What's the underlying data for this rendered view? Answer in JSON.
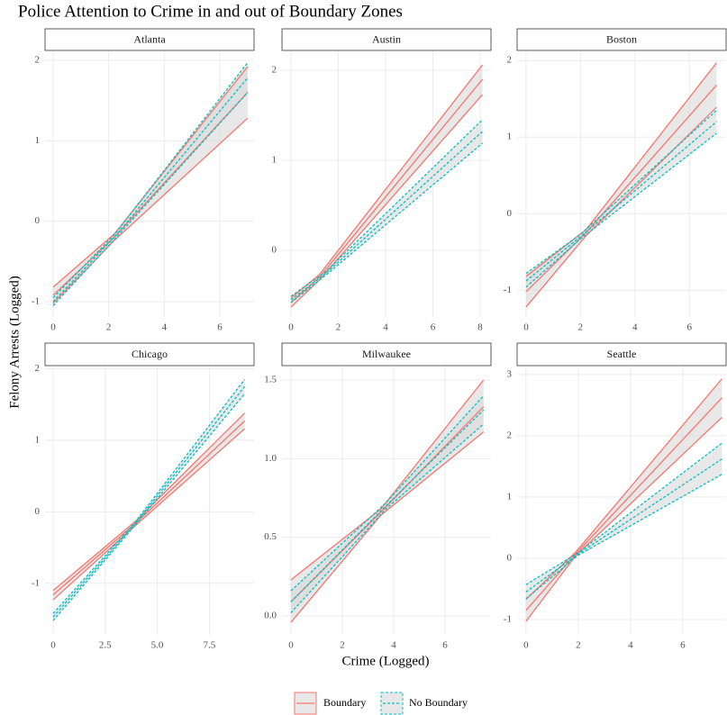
{
  "title": "Police Attention to Crime in and out of Boundary Zones",
  "x_label": "Crime (Logged)",
  "y_label": "Felony Arrests (Logged)",
  "legend": "bottom",
  "grid": true,
  "band_color": "#d9d9d9",
  "chart_data": [
    {
      "type": "line",
      "title": "Atlanta",
      "xlim": [
        -0.29,
        7.23
      ],
      "ylim": [
        -1.19,
        2.11
      ],
      "xticks": [
        0,
        2,
        4,
        6
      ],
      "yticks": [
        -1,
        0,
        1,
        2
      ],
      "series": [
        {
          "name": "Boundary",
          "color": "#f8766d",
          "linestyle": "solid",
          "x": [
            0,
            2.2,
            7
          ],
          "values": [
            -0.92,
            -0.2,
            1.6
          ],
          "lower": [
            -1.02,
            -0.24,
            1.28
          ],
          "upper": [
            -0.82,
            -0.16,
            1.92
          ]
        },
        {
          "name": "No Boundary",
          "color": "#00bfc4",
          "linestyle": "dashed",
          "x": [
            0,
            2.2,
            7
          ],
          "values": [
            -1.0,
            -0.2,
            1.78
          ],
          "lower": [
            -1.05,
            -0.23,
            1.6
          ],
          "upper": [
            -0.95,
            -0.17,
            1.97
          ]
        }
      ]
    },
    {
      "type": "line",
      "title": "Austin",
      "xlim": [
        -0.38,
        8.46
      ],
      "ylim": [
        -0.74,
        2.21
      ],
      "xticks": [
        0,
        2,
        4,
        6,
        8
      ],
      "yticks": [
        0,
        1,
        2
      ],
      "series": [
        {
          "name": "Boundary",
          "color": "#f8766d",
          "linestyle": "solid",
          "x": [
            0,
            1.2,
            8.1
          ],
          "values": [
            -0.58,
            -0.3,
            1.9
          ],
          "lower": [
            -0.63,
            -0.33,
            1.73
          ],
          "upper": [
            -0.53,
            -0.27,
            2.06
          ]
        },
        {
          "name": "No Boundary",
          "color": "#00bfc4",
          "linestyle": "dashed",
          "x": [
            0,
            1.5,
            8.1
          ],
          "values": [
            -0.55,
            -0.25,
            1.32
          ],
          "lower": [
            -0.58,
            -0.27,
            1.19
          ],
          "upper": [
            -0.51,
            -0.23,
            1.45
          ]
        }
      ]
    },
    {
      "type": "line",
      "title": "Boston",
      "xlim": [
        -0.33,
        7.35
      ],
      "ylim": [
        -1.35,
        2.12
      ],
      "xticks": [
        0,
        2,
        4,
        6
      ],
      "yticks": [
        -1,
        0,
        1,
        2
      ],
      "series": [
        {
          "name": "Boundary",
          "color": "#f8766d",
          "linestyle": "solid",
          "x": [
            0,
            2.2,
            7
          ],
          "values": [
            -1.02,
            -0.25,
            1.68
          ],
          "lower": [
            -1.22,
            -0.29,
            1.39
          ],
          "upper": [
            -0.82,
            -0.21,
            1.97
          ]
        },
        {
          "name": "No Boundary",
          "color": "#00bfc4",
          "linestyle": "dashed",
          "x": [
            0,
            2,
            7
          ],
          "values": [
            -0.88,
            -0.3,
            1.2
          ],
          "lower": [
            -0.96,
            -0.33,
            1.05
          ],
          "upper": [
            -0.78,
            -0.27,
            1.35
          ]
        }
      ]
    },
    {
      "type": "line",
      "title": "Chicago",
      "xlim": [
        -0.39,
        9.65
      ],
      "ylim": [
        -1.72,
        2.03
      ],
      "xticks": [
        0,
        2.5,
        {
          "value": 5,
          "label": "5.0"
        },
        7.5
      ],
      "yticks": [
        -1,
        0,
        1,
        2
      ],
      "series": [
        {
          "name": "Boundary",
          "color": "#f8766d",
          "linestyle": "solid",
          "x": [
            0,
            4,
            9.2
          ],
          "values": [
            -1.16,
            -0.15,
            1.27
          ],
          "lower": [
            -1.23,
            -0.18,
            1.16
          ],
          "upper": [
            -1.1,
            -0.12,
            1.38
          ]
        },
        {
          "name": "No Boundary",
          "color": "#00bfc4",
          "linestyle": "dashed",
          "x": [
            0,
            3.9,
            9.2
          ],
          "values": [
            -1.47,
            -0.18,
            1.75
          ],
          "lower": [
            -1.52,
            -0.2,
            1.65
          ],
          "upper": [
            -1.42,
            -0.16,
            1.85
          ]
        }
      ]
    },
    {
      "type": "line",
      "title": "Milwaukee",
      "xlim": [
        -0.35,
        7.79
      ],
      "ylim": [
        -0.12,
        1.586
      ],
      "xticks": [
        0,
        2,
        4,
        6
      ],
      "yticks": [
        {
          "value": 0,
          "label": "0.0"
        },
        0.5,
        {
          "value": 1,
          "label": "1.0"
        },
        1.5
      ],
      "series": [
        {
          "name": "Boundary",
          "color": "#f8766d",
          "linestyle": "solid",
          "x": [
            0,
            3.5,
            7.5
          ],
          "values": [
            0.09,
            0.66,
            1.33
          ],
          "lower": [
            -0.04,
            0.64,
            1.17
          ],
          "upper": [
            0.23,
            0.68,
            1.5
          ]
        },
        {
          "name": "No Boundary",
          "color": "#00bfc4",
          "linestyle": "dashed",
          "x": [
            0,
            3.7,
            7.5
          ],
          "values": [
            0.09,
            0.7,
            1.31
          ],
          "lower": [
            0.02,
            0.68,
            1.22
          ],
          "upper": [
            0.16,
            0.72,
            1.4
          ]
        }
      ]
    },
    {
      "type": "line",
      "title": "Seattle",
      "xlim": [
        -0.34,
        7.66
      ],
      "ylim": [
        -1.25,
        3.13
      ],
      "xticks": [
        0,
        2,
        4,
        6
      ],
      "yticks": [
        -1,
        0,
        1,
        2,
        3
      ],
      "series": [
        {
          "name": "Boundary",
          "color": "#f8766d",
          "linestyle": "solid",
          "x": [
            0,
            1.9,
            7.5
          ],
          "values": [
            -0.85,
            0.07,
            2.62
          ],
          "lower": [
            -1.03,
            0.04,
            2.3
          ],
          "upper": [
            -0.67,
            0.1,
            2.93
          ]
        },
        {
          "name": "No Boundary",
          "color": "#00bfc4",
          "linestyle": "dashed",
          "x": [
            0,
            2,
            7.5
          ],
          "values": [
            -0.55,
            0.07,
            1.62
          ],
          "lower": [
            -0.66,
            0.05,
            1.37
          ],
          "upper": [
            -0.43,
            0.09,
            1.88
          ]
        }
      ]
    }
  ]
}
